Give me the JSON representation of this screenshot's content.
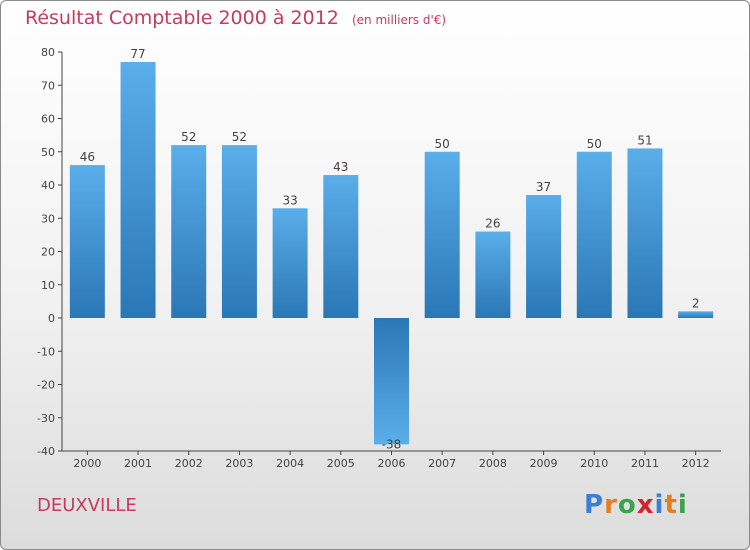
{
  "header": {
    "title": "Résultat Comptable 2000 à 2012",
    "subtitle": "(en milliers d'€)"
  },
  "footer": {
    "commune": "DEUXVILLE",
    "brand": "Proxiti",
    "brand_letters": [
      "P",
      "r",
      "o",
      "x",
      "i",
      "t",
      "i"
    ],
    "brand_colors": [
      "#3a7fd5",
      "#e0801f",
      "#3aa34b",
      "#d4212a",
      "#3a7fd5",
      "#e0801f",
      "#3aa34b"
    ]
  },
  "colors": {
    "title": "#c43b5d",
    "bar_top": "#5aaeea",
    "bar_bottom": "#2a77b5"
  },
  "chart_data": {
    "type": "bar",
    "title": "Résultat Comptable 2000 à 2012",
    "subtitle": "(en milliers d'€)",
    "xlabel": "",
    "ylabel": "",
    "categories": [
      "2000",
      "2001",
      "2002",
      "2003",
      "2004",
      "2005",
      "2006",
      "2007",
      "2008",
      "2009",
      "2010",
      "2011",
      "2012"
    ],
    "values": [
      46,
      77,
      52,
      52,
      33,
      43,
      -38,
      50,
      26,
      37,
      50,
      51,
      2
    ],
    "ylim": [
      -40,
      80
    ],
    "yticks": [
      -40,
      -30,
      -20,
      -10,
      0,
      10,
      20,
      30,
      40,
      50,
      60,
      70,
      80
    ],
    "grid": false
  }
}
